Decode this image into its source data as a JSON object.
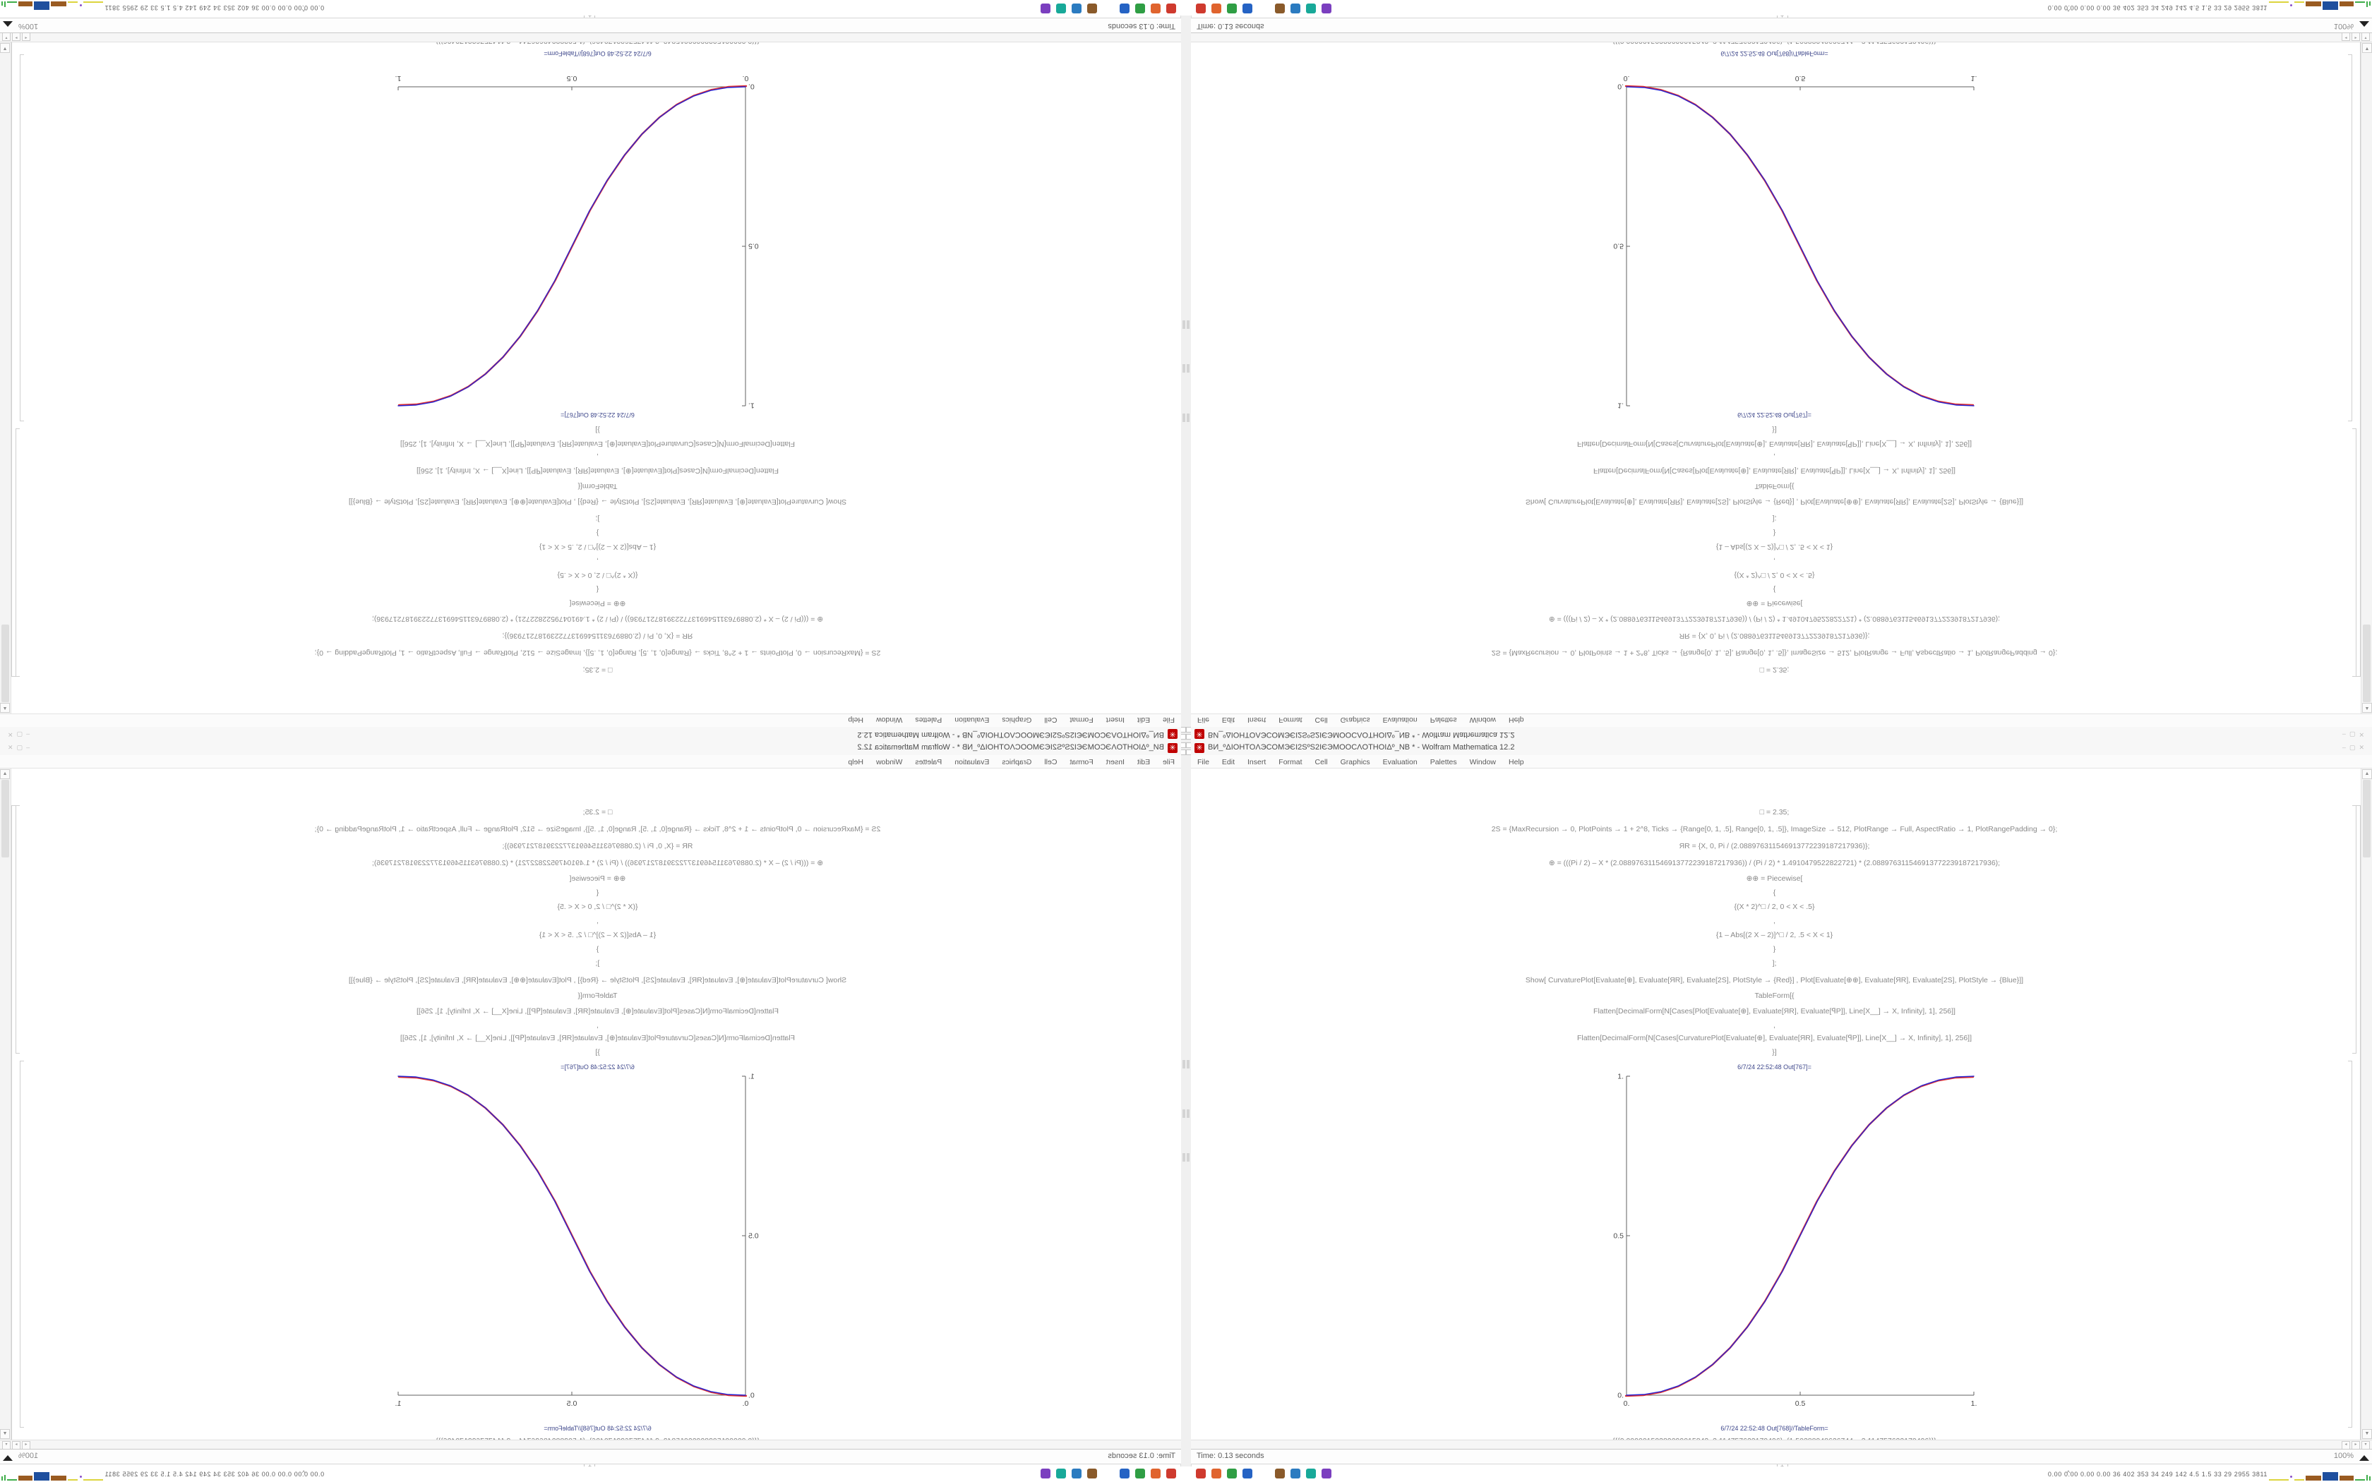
{
  "screen": {
    "window": {
      "title": "ВИ_ºΔIOHTOΛЭCOMЭЄI2SºS2IЄЭMOOCΛOTHOIΔº_NB * - Wolfram Mathematica 12.2",
      "app_icon_glyph": "✳",
      "controls": [
        "–",
        "▢",
        "✕"
      ],
      "menu": [
        "File",
        "Edit",
        "Insert",
        "Format",
        "Cell",
        "Graphics",
        "Evaluation",
        "Palettes",
        "Window",
        "Help"
      ],
      "code_lines": [
        "□ = 2.35;",
        "2S = {MaxRecursion → 0, PlotPoints → 1 + 2^8, Ticks → {Range[0, 1, .5], Range[0, 1, .5]}, ImageSize → 512, PlotRange → Full, AspectRatio → 1, PlotRangePadding → 0};",
        "ЯR = {X, 0, Pi / (2.088976311546913772239187217936)};",
        "⊕ = (((Pi / 2) – X * (2.088976311546913772239187217936)) / (Pi / 2) * 1.4910479522822721) * (2.088976311546913772239187217936);",
        "⊕⊕ = Piecewise[",
        "{",
        "{(X * 2)^□ / 2,  0 < X < .5}",
        ",",
        "{1 – Abs[(2 X – 2)]^□ / 2,  .5 < X < 1}",
        "}",
        "];",
        "Show[   CurvaturePlot[Evaluate[⊕], Evaluate[ЯR], Evaluate[2S], PlotStyle → {Red}]   ,   Plot[Evaluate[⊕⊕], Evaluate[ЯR], Evaluate[2S],  PlotStyle → {Blue}]]",
        "TableForm[{",
        "Flatten[DecimalForm[N[Cases[Plot[Evaluate[⊕], Evaluate[ЯR], Evaluate[ꟼP]], Line[X__] → X, Infinity], 1], 256]]",
        ",",
        "Flatten[DecimalForm[N[Cases[CurvaturePlot[Evaluate[⊕], Evaluate[ЯR], Evaluate[ꟼP]], Line[X__] → X, Infinity], 1], 256]]",
        "}]"
      ],
      "out_label_top": "6/7/24 22:52:48 Out[767]=",
      "out_label_bottom": "6/7/24 22:52:48 Out[768]//TableForm=",
      "table_rows": [
        "{{{0.00000150389099015843, 3.114757622170496}, {1.50388948626744, –3.114757622170496}}}",
        "{{{0., 0.}, {1.0000000000001, 1.00000000000003}}}"
      ],
      "insertion_marker": "+",
      "status": {
        "time": "Time: 0.13 seconds",
        "zoom": "100%"
      }
    },
    "taskbar": {
      "expander": "^",
      "tray_stats": "0.00 0.00 0.00 0.00   36   402  353   34   249  142   4.5   1.5   33   29  2955 3811",
      "app_icons": [
        {
          "name": "app-icon-red",
          "color": "#cf3a2e"
        },
        {
          "name": "app-icon-orange",
          "color": "#e0642e"
        },
        {
          "name": "app-icon-green",
          "color": "#2f9e44"
        },
        {
          "name": "app-icon-blue",
          "color": "#2563c4"
        },
        {
          "name": "app-icon-brown",
          "color": "#8a5a2a"
        },
        {
          "name": "app-icon-lightblue",
          "color": "#2b7bc0"
        },
        {
          "name": "app-icon-teal",
          "color": "#18a999"
        },
        {
          "name": "app-icon-purple",
          "color": "#7b3fbf"
        }
      ],
      "meter_segments": [
        {
          "kind": "line",
          "color": "#ddd53e",
          "w": 28
        },
        {
          "kind": "dot",
          "color": "#8a4fc8",
          "w": 4
        },
        {
          "kind": "line",
          "color": "#ddd53e",
          "w": 14
        },
        {
          "kind": "block",
          "color": "#9a5b21",
          "w": 22,
          "h": 7
        },
        {
          "kind": "block",
          "color": "#1f4f9e",
          "w": 22,
          "h": 12
        },
        {
          "kind": "block",
          "color": "#9a5b21",
          "w": 20,
          "h": 7
        },
        {
          "kind": "line",
          "color": "#3fae4a",
          "w": 14
        },
        {
          "kind": "spikes",
          "color": "#3fae4a",
          "w": 12
        }
      ]
    },
    "colors": {
      "accent_red_curve": "#e03030",
      "accent_blue_curve": "#2525d5",
      "code_text": "#898989",
      "out_label": "#3e478b",
      "mathematica_icon": "#c00000"
    },
    "composition": {
      "top_left": "rotated-180",
      "top_right": "flipped-vertical",
      "bottom_left": "flipped-horizontal",
      "bottom_right": "normal"
    }
  },
  "chart_data": {
    "type": "line",
    "title": "",
    "xlabel": "",
    "ylabel": "",
    "xlim": [
      0,
      1
    ],
    "ylim": [
      0,
      1
    ],
    "grid": false,
    "legend": "none",
    "xticks": [
      {
        "v": 0,
        "label": "0."
      },
      {
        "v": 0.5,
        "label": "0.5"
      },
      {
        "v": 1,
        "label": "1."
      }
    ],
    "yticks": [
      {
        "v": 0,
        "label": "0."
      },
      {
        "v": 0.5,
        "label": "0.5"
      },
      {
        "v": 1,
        "label": "1."
      }
    ],
    "x": [
      0,
      0.05,
      0.1,
      0.15,
      0.2,
      0.25,
      0.3,
      0.35,
      0.4,
      0.45,
      0.5,
      0.55,
      0.6,
      0.65,
      0.7,
      0.75,
      0.8,
      0.85,
      0.9,
      0.95,
      1
    ],
    "series": [
      {
        "name": "CurvaturePlot ⊕ (Red)",
        "color": "#e03030",
        "values": [
          0,
          0.0022,
          0.0114,
          0.0295,
          0.058,
          0.0981,
          0.1505,
          0.2163,
          0.296,
          0.3904,
          0.5,
          0.6096,
          0.704,
          0.7837,
          0.8495,
          0.9019,
          0.942,
          0.9705,
          0.9886,
          0.9978,
          1
        ]
      },
      {
        "name": "Plot ⊕⊕ (Blue)",
        "color": "#2525d5",
        "values": [
          0,
          0.0022,
          0.0114,
          0.0295,
          0.058,
          0.0981,
          0.1505,
          0.2163,
          0.296,
          0.3904,
          0.5,
          0.6096,
          0.704,
          0.7837,
          0.8495,
          0.9019,
          0.942,
          0.9705,
          0.9886,
          0.9978,
          1
        ]
      }
    ],
    "description": "Piecewise sigmoid (2x)^2.35/2 for 0<x<.5 ; 1-|2x-2|^2.35/2 for .5<x<1 — red and blue curves overlap"
  }
}
